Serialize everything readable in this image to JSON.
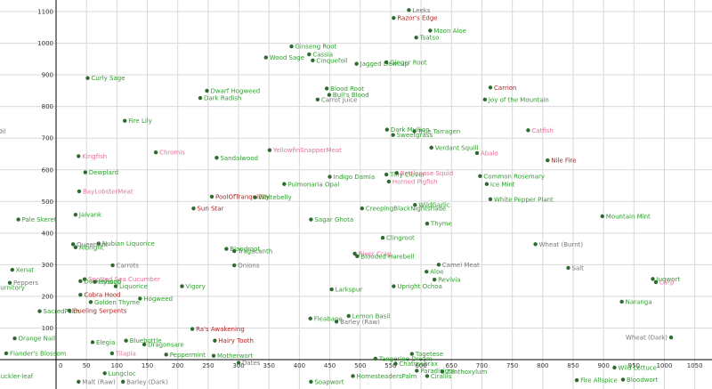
{
  "chart_data": {
    "type": "scatter",
    "title": "",
    "xlabel": "",
    "ylabel": "",
    "xlim": [
      -100,
      1070
    ],
    "ylim": [
      -145,
      1130
    ],
    "grid": true,
    "legend": "none",
    "x_ticks": [
      0,
      50,
      100,
      150,
      200,
      250,
      300,
      350,
      400,
      450,
      500,
      550,
      600,
      650,
      700,
      750,
      800,
      850,
      900,
      950,
      1000,
      1050
    ],
    "y_ticks": [
      0,
      100,
      200,
      300,
      400,
      500,
      600,
      700,
      800,
      900,
      1000,
      1100
    ],
    "x_tick_labels": [
      "0",
      "50",
      "100",
      "150",
      "200",
      "250",
      "300",
      "350",
      "400",
      "450",
      "500",
      "550",
      "600",
      "650",
      "700",
      "750",
      "800",
      "850",
      "900",
      "950",
      "1000",
      "1050"
    ],
    "y_tick_labels": [
      "",
      "100",
      "200",
      "300",
      "400",
      "500",
      "600",
      "700",
      "800",
      "900",
      "1000",
      "1100"
    ],
    "category_colors": {
      "green": "#2e9e2e",
      "pink": "#e8709a",
      "red": "#b22222",
      "gray": "#777777"
    },
    "marker_color": "#2e6b2e",
    "points": [
      {
        "label": "Leeks",
        "x": 580,
        "y": 1105,
        "c": "gray"
      },
      {
        "label": "Razor's Edge",
        "x": 555,
        "y": 1080,
        "c": "red"
      },
      {
        "label": "Moon Aloe",
        "x": 615,
        "y": 1040,
        "c": "green"
      },
      {
        "label": "Tsatso",
        "x": 592,
        "y": 1018,
        "c": "green"
      },
      {
        "label": "Ginseng Root",
        "x": 387,
        "y": 990,
        "c": "green"
      },
      {
        "label": "Cassia",
        "x": 416,
        "y": 965,
        "c": "green"
      },
      {
        "label": "Wood Sage",
        "x": 345,
        "y": 955,
        "c": "green"
      },
      {
        "label": "Cinquefoil",
        "x": 422,
        "y": 946,
        "c": "green"
      },
      {
        "label": "Jagged Dewcup",
        "x": 494,
        "y": 935,
        "c": "green"
      },
      {
        "label": "Ginger Root",
        "x": 543,
        "y": 940,
        "c": "green"
      },
      {
        "label": "Curly Sage",
        "x": 52,
        "y": 890,
        "c": "green"
      },
      {
        "label": "Carrion",
        "x": 714,
        "y": 860,
        "c": "red"
      },
      {
        "label": "Dwarf Hogweed",
        "x": 248,
        "y": 850,
        "c": "green"
      },
      {
        "label": "Blood Root",
        "x": 445,
        "y": 857,
        "c": "green"
      },
      {
        "label": "Bull's Blood",
        "x": 449,
        "y": 837,
        "c": "green"
      },
      {
        "label": "Joy of the Mountain",
        "x": 705,
        "y": 822,
        "c": "green"
      },
      {
        "label": "Dark Radish",
        "x": 237,
        "y": 827,
        "c": "green"
      },
      {
        "label": "Carrot Juice",
        "x": 430,
        "y": 822,
        "c": "gray"
      },
      {
        "label": "Fire Lily",
        "x": 113,
        "y": 755,
        "c": "green"
      },
      {
        "label": "Dark Mullion",
        "x": 544,
        "y": 727,
        "c": "green"
      },
      {
        "label": "True Tarragen",
        "x": 589,
        "y": 722,
        "c": "green"
      },
      {
        "label": "Catfish",
        "x": 776,
        "y": 725,
        "c": "pink"
      },
      {
        "label": "Oil",
        "x": -102,
        "y": 722,
        "c": "gray"
      },
      {
        "label": "Sweetgrass",
        "x": 554,
        "y": 710,
        "c": "green"
      },
      {
        "label": "Abalo",
        "x": 692,
        "y": 653,
        "c": "pink"
      },
      {
        "label": "Verdant Squill",
        "x": 617,
        "y": 670,
        "c": "green"
      },
      {
        "label": "Nile Fire",
        "x": 808,
        "y": 630,
        "c": "red"
      },
      {
        "label": "Kingfish",
        "x": 37,
        "y": 643,
        "c": "pink"
      },
      {
        "label": "Chromis",
        "x": 164,
        "y": 655,
        "c": "pink"
      },
      {
        "label": "YellowfinSnapperMeat",
        "x": 351,
        "y": 662,
        "c": "pink"
      },
      {
        "label": "Sandalwood",
        "x": 264,
        "y": 638,
        "c": "green"
      },
      {
        "label": "Dewplard",
        "x": 48,
        "y": 592,
        "c": "green"
      },
      {
        "label": "Indigo Damia",
        "x": 450,
        "y": 578,
        "c": "green"
      },
      {
        "label": "Tiny Clover",
        "x": 543,
        "y": 585,
        "c": "green"
      },
      {
        "label": "Bottlenose Squid",
        "x": 560,
        "y": 590,
        "c": "pink"
      },
      {
        "label": "Common Rosemary",
        "x": 697,
        "y": 580,
        "c": "green"
      },
      {
        "label": "Ice Mint",
        "x": 708,
        "y": 555,
        "c": "green"
      },
      {
        "label": "Horned Pigfish",
        "x": 547,
        "y": 563,
        "c": "pink"
      },
      {
        "label": "Pulmonaria Opal",
        "x": 375,
        "y": 555,
        "c": "green"
      },
      {
        "label": "BayLobsterMeat",
        "x": 38,
        "y": 532,
        "c": "pink"
      },
      {
        "label": "PoolOfTranquillity",
        "x": 256,
        "y": 515,
        "c": "red"
      },
      {
        "label": "White Pepper Plant",
        "x": 714,
        "y": 507,
        "c": "green"
      },
      {
        "label": "Whitebelly",
        "x": 327,
        "y": 513,
        "c": "green"
      },
      {
        "label": "WildGarlic",
        "x": 590,
        "y": 489,
        "c": "green"
      },
      {
        "label": "Jaivank",
        "x": 32,
        "y": 458,
        "c": "green"
      },
      {
        "label": "Sun Star",
        "x": 226,
        "y": 478,
        "c": "red"
      },
      {
        "label": "CreepingBlackNightshade",
        "x": 503,
        "y": 478,
        "c": "green"
      },
      {
        "label": "Pale Skeret",
        "x": -62,
        "y": 443,
        "c": "green"
      },
      {
        "label": "Sagar Ghota",
        "x": 419,
        "y": 443,
        "c": "green"
      },
      {
        "label": "Mountain Mint",
        "x": 898,
        "y": 453,
        "c": "green"
      },
      {
        "label": "Thyme",
        "x": 610,
        "y": 430,
        "c": "green"
      },
      {
        "label": "Nubian Liquorice",
        "x": 70,
        "y": 367,
        "c": "green"
      },
      {
        "label": "QueenAnt",
        "x": 28,
        "y": 365,
        "c": "gray"
      },
      {
        "label": "Albright",
        "x": 32,
        "y": 355,
        "c": "green"
      },
      {
        "label": "Clingroot",
        "x": 537,
        "y": 385,
        "c": "green"
      },
      {
        "label": "Wheat (Burnt)",
        "x": 788,
        "y": 365,
        "c": "gray"
      },
      {
        "label": "Bloodroot",
        "x": 280,
        "y": 350,
        "c": "green"
      },
      {
        "label": "Tragacanth",
        "x": 293,
        "y": 343,
        "c": "green"
      },
      {
        "label": "River Crap",
        "x": 491,
        "y": 335,
        "c": "pink"
      },
      {
        "label": "Blooded Harebell",
        "x": 495,
        "y": 327,
        "c": "green"
      },
      {
        "label": "Carrots",
        "x": 93,
        "y": 298,
        "c": "gray"
      },
      {
        "label": "Onions",
        "x": 293,
        "y": 298,
        "c": "gray"
      },
      {
        "label": "Camel Meat",
        "x": 629,
        "y": 300,
        "c": "gray"
      },
      {
        "label": "Salt",
        "x": 842,
        "y": 290,
        "c": "gray"
      },
      {
        "label": "Xenat",
        "x": -72,
        "y": 284,
        "c": "green"
      },
      {
        "label": "Aloe",
        "x": 609,
        "y": 278,
        "c": "green"
      },
      {
        "label": "Peppers",
        "x": -76,
        "y": 243,
        "c": "gray"
      },
      {
        "label": "Revivia",
        "x": 622,
        "y": 253,
        "c": "green"
      },
      {
        "label": "Spotted Sea Cucumber",
        "x": 47,
        "y": 254,
        "c": "pink"
      },
      {
        "label": "Jugwort",
        "x": 981,
        "y": 255,
        "c": "green"
      },
      {
        "label": "Dameshood",
        "x": 40,
        "y": 248,
        "c": "green"
      },
      {
        "label": "Hyssop",
        "x": 64,
        "y": 246,
        "c": "green"
      },
      {
        "label": "Carp",
        "x": 986,
        "y": 245,
        "c": "pink"
      },
      {
        "label": "Furnitory",
        "x": -103,
        "y": 228,
        "c": "green"
      },
      {
        "label": "Liquorice",
        "x": 98,
        "y": 232,
        "c": "green"
      },
      {
        "label": "Vigory",
        "x": 207,
        "y": 232,
        "c": "green"
      },
      {
        "label": "Larkspur",
        "x": 453,
        "y": 222,
        "c": "green"
      },
      {
        "label": "Upright Ochoa",
        "x": 555,
        "y": 232,
        "c": "green"
      },
      {
        "label": "Cobra Hood",
        "x": 40,
        "y": 205,
        "c": "red"
      },
      {
        "label": "Hogweed",
        "x": 138,
        "y": 193,
        "c": "green"
      },
      {
        "label": "Golden Thyme",
        "x": 57,
        "y": 182,
        "c": "green"
      },
      {
        "label": "Naranga",
        "x": 930,
        "y": 183,
        "c": "green"
      },
      {
        "label": "SacredPalm",
        "x": -27,
        "y": 153,
        "c": "green"
      },
      {
        "label": "Dueling Serpents",
        "x": 22,
        "y": 155,
        "c": "red"
      },
      {
        "label": "Fleabane",
        "x": 418,
        "y": 130,
        "c": "green"
      },
      {
        "label": "Lemon Basil",
        "x": 481,
        "y": 138,
        "c": "green"
      },
      {
        "label": "Ra's Awakening",
        "x": 224,
        "y": 97,
        "c": "red"
      },
      {
        "label": "Barley (Raw)",
        "x": 461,
        "y": 120,
        "c": "gray"
      },
      {
        "label": "Orange Nail",
        "x": -68,
        "y": 67,
        "c": "green"
      },
      {
        "label": "Elegia",
        "x": 60,
        "y": 55,
        "c": "green"
      },
      {
        "label": "Bluebottle",
        "x": 115,
        "y": 60,
        "c": "green"
      },
      {
        "label": "Dragonsare",
        "x": 145,
        "y": 48,
        "c": "green"
      },
      {
        "label": "Hairy Tooth",
        "x": 261,
        "y": 60,
        "c": "red"
      },
      {
        "label": "Wheat (Dark)",
        "x": 1011,
        "y": 70,
        "c": "gray"
      },
      {
        "label": "Flander's Blossom",
        "x": -82,
        "y": 20,
        "c": "green"
      },
      {
        "label": "Tilapia",
        "x": 92,
        "y": 20,
        "c": "pink"
      },
      {
        "label": "Peppermint",
        "x": 181,
        "y": 16,
        "c": "green"
      },
      {
        "label": "Motherwort",
        "x": 259,
        "y": 12,
        "c": "green"
      },
      {
        "label": "Tagetese",
        "x": 585,
        "y": 18,
        "c": "green"
      },
      {
        "label": "Tangerine Dream",
        "x": 525,
        "y": 3,
        "c": "green"
      },
      {
        "label": "Dates",
        "x": 300,
        "y": -10,
        "c": "gray"
      },
      {
        "label": "Chatrnabrax",
        "x": 558,
        "y": -13,
        "c": "green"
      },
      {
        "label": "Paradisium",
        "x": 593,
        "y": -35,
        "c": "green"
      },
      {
        "label": "Zanthoxylum",
        "x": 635,
        "y": -38,
        "c": "green"
      },
      {
        "label": "Lungcloc",
        "x": 80,
        "y": -43,
        "c": "green"
      },
      {
        "label": "Wild Lettuce",
        "x": 918,
        "y": -25,
        "c": "green"
      },
      {
        "label": "Buckler-leaf",
        "x": -104,
        "y": -52,
        "c": "green"
      },
      {
        "label": "HomesteadersPalm",
        "x": 488,
        "y": -52,
        "c": "green"
      },
      {
        "label": "Cirallis",
        "x": 610,
        "y": -52,
        "c": "green"
      },
      {
        "label": "Malt (Raw)",
        "x": 37,
        "y": -70,
        "c": "gray"
      },
      {
        "label": "Barley (Dark)",
        "x": 110,
        "y": -70,
        "c": "gray"
      },
      {
        "label": "Soapwort",
        "x": 419,
        "y": -70,
        "c": "green"
      },
      {
        "label": "Fire Allspice",
        "x": 856,
        "y": -65,
        "c": "green"
      },
      {
        "label": "Bloodwort",
        "x": 932,
        "y": -63,
        "c": "green"
      }
    ]
  }
}
